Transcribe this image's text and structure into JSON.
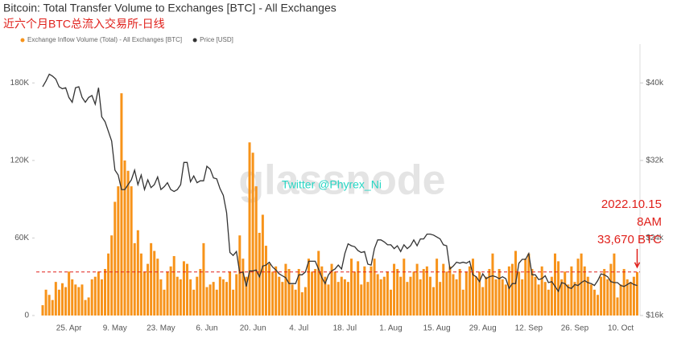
{
  "chart_data": {
    "type": "bar",
    "title": "Bitcoin: Total Transfer Volume to Exchanges [BTC] - All Exchanges",
    "subtitle": "近六个月BTC总流入交易所-日线",
    "watermark": "glassnode",
    "credit": "Twitter @Phyrex_Ni",
    "annotations": [
      "2022.10.15",
      "8AM",
      "33,670 BTC"
    ],
    "legend_position": "top-left",
    "grid": false,
    "categories": [
      null,
      null,
      null,
      null,
      null,
      null,
      null,
      null,
      "25. Apr",
      null,
      null,
      null,
      null,
      null,
      null,
      null,
      null,
      null,
      null,
      null,
      null,
      null,
      "9. May",
      null,
      null,
      null,
      null,
      null,
      null,
      null,
      null,
      null,
      null,
      null,
      null,
      null,
      "23. May",
      null,
      null,
      null,
      null,
      null,
      null,
      null,
      null,
      null,
      null,
      null,
      null,
      null,
      "6. Jun",
      null,
      null,
      null,
      null,
      null,
      null,
      null,
      null,
      null,
      null,
      null,
      null,
      null,
      "20. Jun",
      null,
      null,
      null,
      null,
      null,
      null,
      null,
      null,
      null,
      null,
      null,
      null,
      null,
      "4. Jul",
      null,
      null,
      null,
      null,
      null,
      null,
      null,
      null,
      null,
      null,
      null,
      null,
      null,
      "18. Jul",
      null,
      null,
      null,
      null,
      null,
      null,
      null,
      null,
      null,
      null,
      null,
      null,
      null,
      "1. Aug",
      null,
      null,
      null,
      null,
      null,
      null,
      null,
      null,
      null,
      null,
      null,
      null,
      null,
      "15. Aug",
      null,
      null,
      null,
      null,
      null,
      null,
      null,
      null,
      null,
      null,
      null,
      null,
      null,
      "29. Aug",
      null,
      null,
      null,
      null,
      null,
      null,
      null,
      null,
      null,
      null,
      null,
      null,
      null,
      "12. Sep",
      null,
      null,
      null,
      null,
      null,
      null,
      null,
      null,
      null,
      null,
      null,
      null,
      null,
      "26. Sep",
      null,
      null,
      null,
      null,
      null,
      null,
      null,
      null,
      null,
      null,
      null,
      null,
      null,
      "10. Oct",
      null,
      null,
      null,
      null,
      null
    ],
    "series": [
      {
        "name": "Exchange Inflow Volume (Total) - All Exchanges [BTC]",
        "color": "#f7931a",
        "values": [
          8000,
          20000,
          16000,
          12000,
          26000,
          20000,
          25000,
          22000,
          34000,
          28000,
          24000,
          22000,
          24000,
          12000,
          14000,
          28000,
          30000,
          34000,
          28000,
          36000,
          48000,
          62000,
          88000,
          100000,
          172000,
          120000,
          112000,
          100000,
          56000,
          66000,
          48000,
          34000,
          40000,
          56000,
          50000,
          44000,
          28000,
          20000,
          34000,
          38000,
          46000,
          30000,
          28000,
          42000,
          40000,
          28000,
          20000,
          30000,
          36000,
          56000,
          22000,
          24000,
          26000,
          20000,
          30000,
          28000,
          26000,
          34000,
          20000,
          32000,
          62000,
          44000,
          30000,
          134000,
          126000,
          100000,
          64000,
          78000,
          54000,
          40000,
          34000,
          38000,
          30000,
          26000,
          40000,
          36000,
          24000,
          20000,
          36000,
          18000,
          22000,
          44000,
          34000,
          36000,
          50000,
          38000,
          30000,
          24000,
          40000,
          34000,
          26000,
          30000,
          28000,
          26000,
          44000,
          34000,
          42000,
          24000,
          38000,
          26000,
          38000,
          44000,
          32000,
          28000,
          30000,
          34000,
          20000,
          40000,
          36000,
          30000,
          44000,
          26000,
          30000,
          34000,
          40000,
          28000,
          36000,
          38000,
          30000,
          22000,
          44000,
          26000,
          40000,
          34000,
          38000,
          32000,
          28000,
          36000,
          20000,
          34000,
          38000,
          44000,
          30000,
          34000,
          22000,
          30000,
          36000,
          48000,
          28000,
          36000,
          28000,
          24000,
          38000,
          40000,
          50000,
          34000,
          28000,
          44000,
          48000,
          36000,
          30000,
          24000,
          38000,
          26000,
          20000,
          30000,
          48000,
          42000,
          28000,
          34000,
          24000,
          38000,
          26000,
          44000,
          48000,
          38000,
          30000,
          24000,
          20000,
          16000,
          30000,
          36000,
          28000,
          40000,
          48000,
          14000,
          24000,
          36000,
          28000,
          26000,
          30000,
          33670
        ]
      },
      {
        "name": "Price [USD]",
        "color": "#333333",
        "axis": "y2",
        "values": [
          39600,
          40200,
          40900,
          40700,
          40400,
          39600,
          39400,
          39500,
          38500,
          38000,
          39500,
          39600,
          38500,
          38000,
          38500,
          38700,
          37800,
          39500,
          36500,
          36000,
          35000,
          34000,
          31000,
          30500,
          29000,
          29000,
          29500,
          30000,
          31000,
          29500,
          30500,
          29000,
          30000,
          29200,
          29500,
          30300,
          29000,
          29300,
          29700,
          29000,
          28800,
          29000,
          29500,
          31800,
          31800,
          29800,
          30400,
          29700,
          29900,
          29900,
          31400,
          31100,
          30200,
          30100,
          29100,
          28400,
          26600,
          22500,
          22200,
          22600,
          20400,
          20500,
          19000,
          20600,
          20600,
          20700,
          20000,
          21100,
          21200,
          21500,
          21000,
          20700,
          20300,
          20100,
          19900,
          19300,
          19300,
          19300,
          20200,
          20200,
          20500,
          21600,
          21600,
          21600,
          20800,
          19900,
          19300,
          20200,
          20600,
          20800,
          21200,
          20800,
          22400,
          23400,
          23200,
          23100,
          22700,
          22500,
          22600,
          21300,
          21200,
          22900,
          23800,
          23800,
          23600,
          23300,
          23300,
          22900,
          23200,
          22600,
          23300,
          22900,
          23200,
          23800,
          23200,
          23900,
          23900,
          24400,
          24400,
          24300,
          24100,
          23900,
          23300,
          23200,
          20800,
          21100,
          21500,
          21400,
          21500,
          21400,
          21600,
          20200,
          20000,
          19500,
          20300,
          19800,
          20000,
          20100,
          20000,
          19800,
          20000,
          19800,
          18800,
          19300,
          19300,
          21400,
          21800,
          21800,
          22400,
          20200,
          20200,
          19700,
          19800,
          20100,
          19400,
          19500,
          19000,
          18500,
          19400,
          19300,
          18900,
          18800,
          19200,
          19100,
          19400,
          19600,
          19400,
          19300,
          19100,
          19600,
          20300,
          20200,
          20000,
          19500,
          19400,
          19400,
          19100,
          19000,
          19200,
          19400,
          19200,
          19100
        ]
      }
    ],
    "ylim": [
      0,
      210000
    ],
    "yticks": [
      0,
      {
        "value": 60000,
        "label": "60K"
      },
      {
        "value": 120000,
        "label": "120K"
      },
      {
        "value": 180000,
        "label": "180K"
      }
    ],
    "y2lim": [
      16000,
      44000
    ],
    "y2ticks": [
      {
        "value": 16000,
        "label": "$16k"
      },
      {
        "value": 24000,
        "label": "$24k"
      },
      {
        "value": 32000,
        "label": "$32k"
      },
      {
        "value": 40000,
        "label": "$40k"
      }
    ]
  }
}
